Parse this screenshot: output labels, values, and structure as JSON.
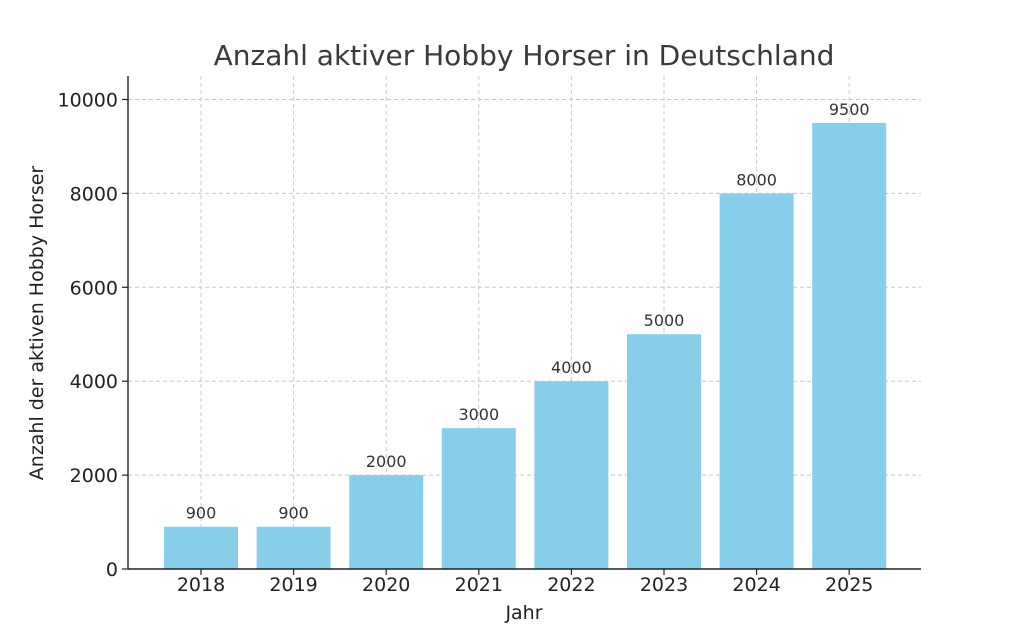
{
  "chart_data": {
    "type": "bar",
    "title": "Anzahl aktiver Hobby Horser in Deutschland",
    "xlabel": "Jahr",
    "ylabel": "Anzahl der aktiven Hobby Horser",
    "categories": [
      "2018",
      "2019",
      "2020",
      "2021",
      "2022",
      "2023",
      "2024",
      "2025"
    ],
    "values": [
      900,
      900,
      2000,
      3000,
      4000,
      5000,
      8000,
      9500
    ],
    "data_labels": [
      "900",
      "900",
      "2000",
      "3000",
      "4000",
      "5000",
      "8000",
      "9500"
    ],
    "ylim": [
      0,
      10500
    ],
    "yticks": [
      0,
      2000,
      4000,
      6000,
      8000,
      10000
    ],
    "ytick_labels": [
      "0",
      "2000",
      "4000",
      "6000",
      "8000",
      "10000"
    ],
    "grid": true,
    "bar_color": "#87ceeb"
  }
}
